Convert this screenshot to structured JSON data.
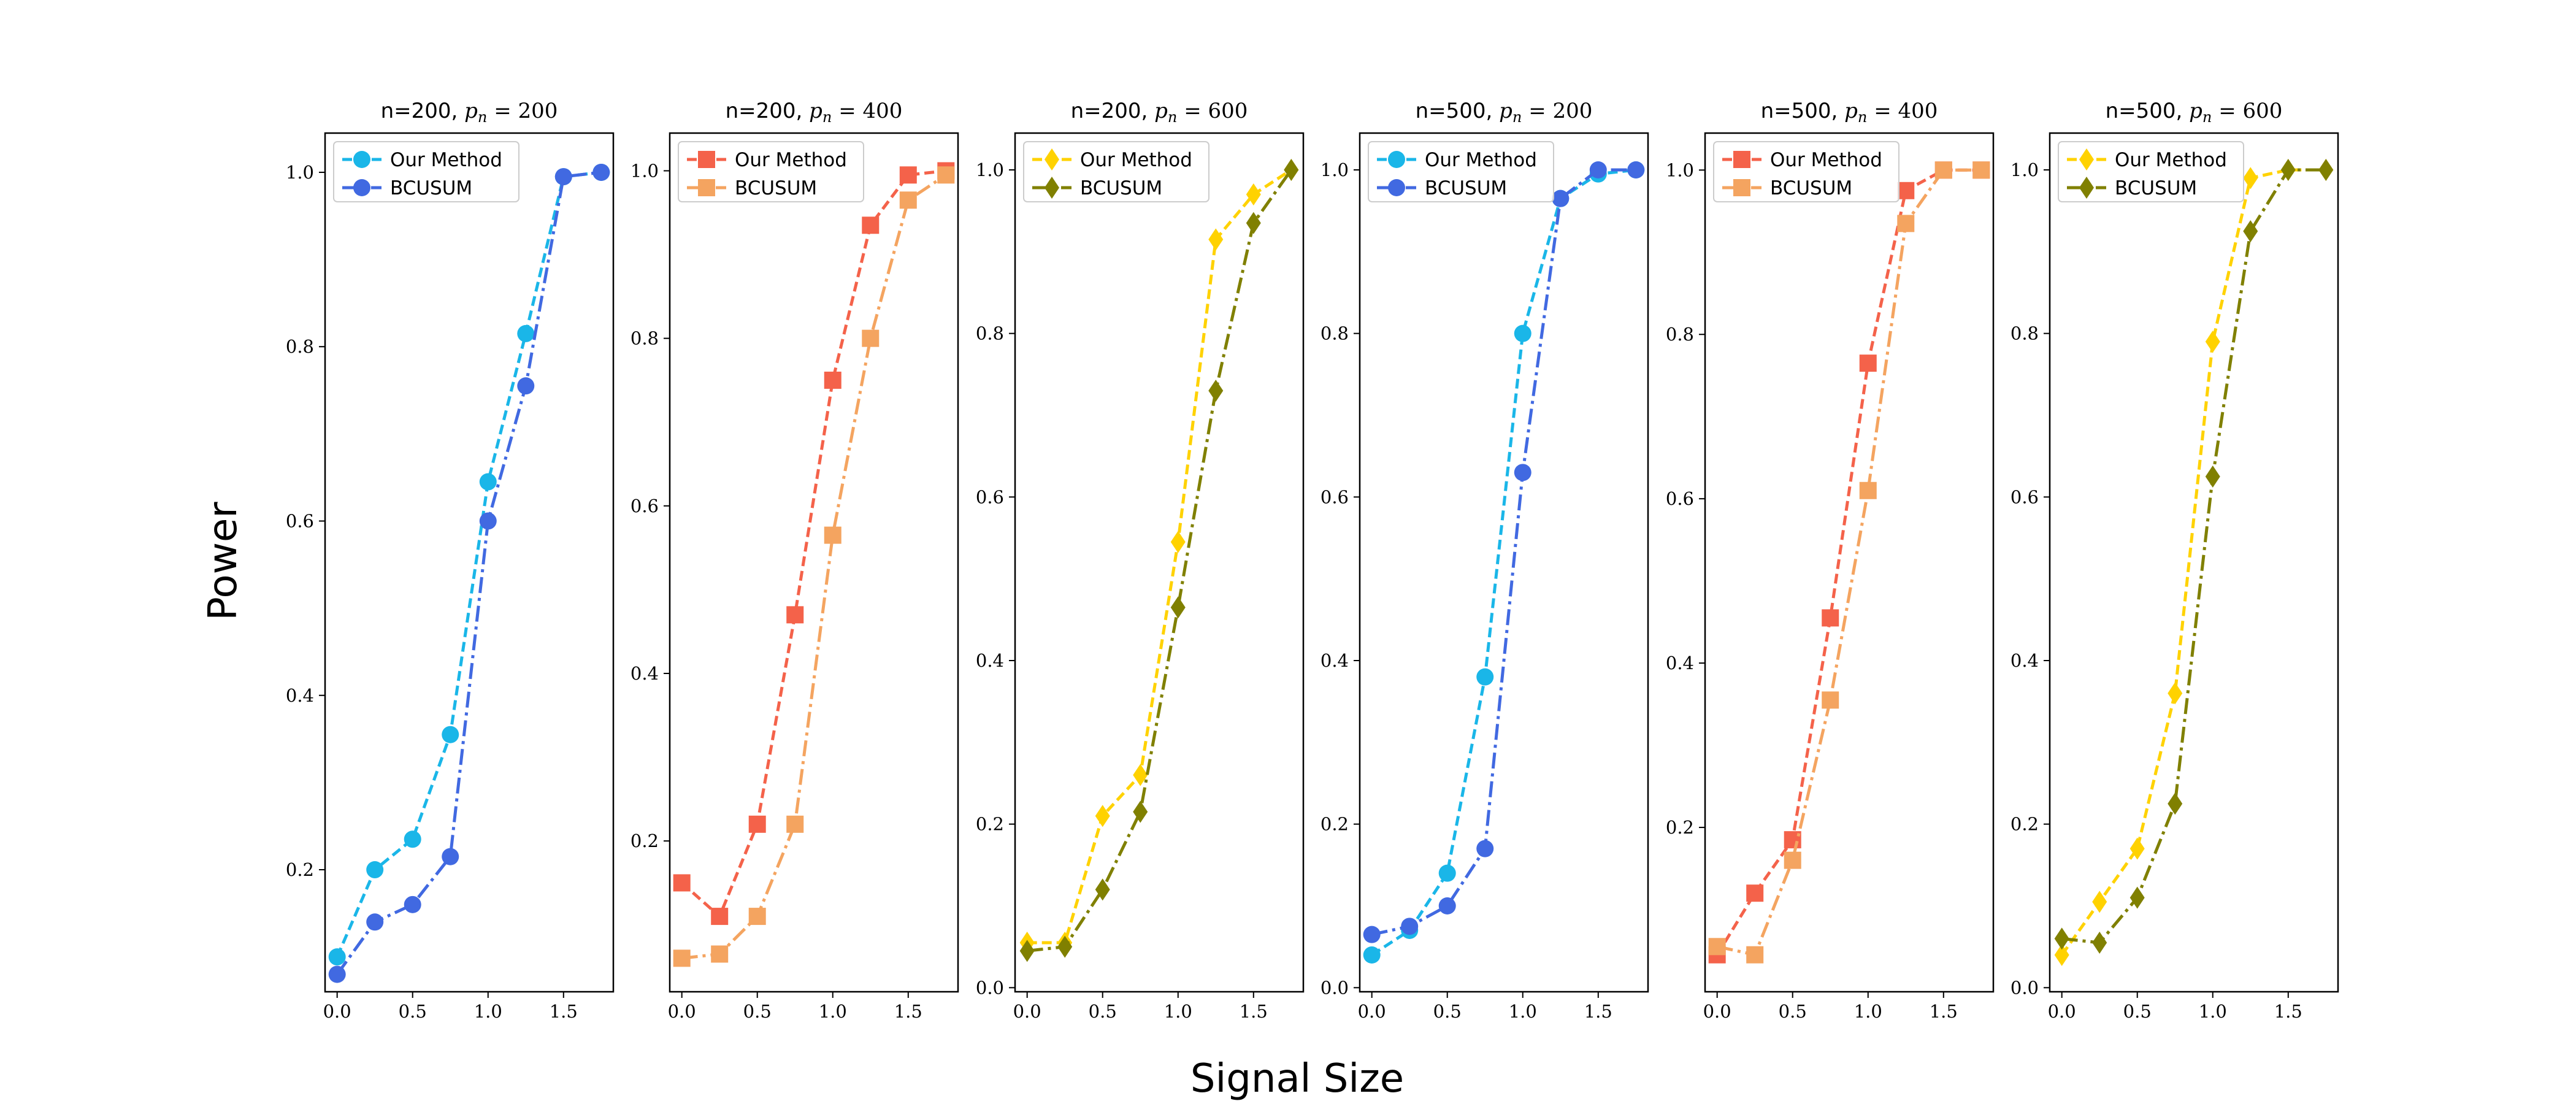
{
  "figure": {
    "ylabel": "Power",
    "xlabel": "Signal Size"
  },
  "chart_data": [
    {
      "type": "line",
      "title": "n=200, p_n = 200",
      "title_parts": [
        "n=200, ",
        "p",
        "n",
        " = 200"
      ],
      "x": [
        0.0,
        0.25,
        0.5,
        0.75,
        1.0,
        1.25,
        1.5,
        1.75
      ],
      "xlim": [
        -0.08,
        1.83
      ],
      "ylim": [
        0.06,
        1.045
      ],
      "xticks": [
        "0.0",
        "0.5",
        "1.0",
        "1.5"
      ],
      "xtick_values": [
        0.0,
        0.5,
        1.0,
        1.5
      ],
      "yticks": [
        "0.2",
        "0.4",
        "0.6",
        "0.8",
        "1.0"
      ],
      "ytick_values": [
        0.2,
        0.4,
        0.6,
        0.8,
        1.0
      ],
      "legend_position": "upper-left",
      "series": [
        {
          "name": "Our Method",
          "color": "#1AB6E8",
          "marker": "circle",
          "linestyle": "dashed",
          "values": [
            0.1,
            0.2,
            0.235,
            0.355,
            0.645,
            0.815,
            0.995,
            1.0
          ]
        },
        {
          "name": "BCUSUM",
          "color": "#4169E1",
          "marker": "circle",
          "linestyle": "dashdot",
          "values": [
            0.08,
            0.14,
            0.16,
            0.215,
            0.6,
            0.755,
            0.995,
            1.0
          ]
        }
      ]
    },
    {
      "type": "line",
      "title": "n=200, p_n = 400",
      "title_parts": [
        "n=200, ",
        "p",
        "n",
        " = 400"
      ],
      "x": [
        0.0,
        0.25,
        0.5,
        0.75,
        1.0,
        1.25,
        1.5,
        1.75
      ],
      "xlim": [
        -0.08,
        1.83
      ],
      "ylim": [
        0.02,
        1.045
      ],
      "xticks": [
        "0.0",
        "0.5",
        "1.0",
        "1.5"
      ],
      "xtick_values": [
        0.0,
        0.5,
        1.0,
        1.5
      ],
      "yticks": [
        "0.2",
        "0.4",
        "0.6",
        "0.8",
        "1.0"
      ],
      "ytick_values": [
        0.2,
        0.4,
        0.6,
        0.8,
        1.0
      ],
      "legend_position": "upper-left",
      "series": [
        {
          "name": "Our Method",
          "color": "#F4624A",
          "marker": "square",
          "linestyle": "dashed",
          "values": [
            0.15,
            0.11,
            0.22,
            0.47,
            0.75,
            0.935,
            0.995,
            1.0
          ]
        },
        {
          "name": "BCUSUM",
          "color": "#F4A460",
          "marker": "square",
          "linestyle": "dashdot",
          "values": [
            0.06,
            0.065,
            0.11,
            0.22,
            0.565,
            0.8,
            0.965,
            0.995
          ]
        }
      ]
    },
    {
      "type": "line",
      "title": "n=200, p_n = 600",
      "title_parts": [
        "n=200, ",
        "p",
        "n",
        " = 600"
      ],
      "x": [
        0.0,
        0.25,
        0.5,
        0.75,
        1.0,
        1.25,
        1.5,
        1.75
      ],
      "xlim": [
        -0.08,
        1.83
      ],
      "ylim": [
        -0.005,
        1.045
      ],
      "xticks": [
        "0.0",
        "0.5",
        "1.0",
        "1.5"
      ],
      "xtick_values": [
        0.0,
        0.5,
        1.0,
        1.5
      ],
      "yticks": [
        "0.0",
        "0.2",
        "0.4",
        "0.6",
        "0.8",
        "1.0"
      ],
      "ytick_values": [
        0.0,
        0.2,
        0.4,
        0.6,
        0.8,
        1.0
      ],
      "legend_position": "upper-left",
      "series": [
        {
          "name": "Our Method",
          "color": "#FFD200",
          "marker": "diamond",
          "linestyle": "dashed",
          "values": [
            0.055,
            0.055,
            0.21,
            0.26,
            0.545,
            0.915,
            0.97,
            1.0
          ]
        },
        {
          "name": "BCUSUM",
          "color": "#808000",
          "marker": "diamond",
          "linestyle": "dashdot",
          "values": [
            0.045,
            0.05,
            0.12,
            0.215,
            0.465,
            0.73,
            0.935,
            1.0
          ]
        }
      ]
    },
    {
      "type": "line",
      "title": "n=500, p_n = 200",
      "title_parts": [
        "n=500, ",
        "p",
        "n",
        " = 200"
      ],
      "x": [
        0.0,
        0.25,
        0.5,
        0.75,
        1.0,
        1.25,
        1.5,
        1.75
      ],
      "xlim": [
        -0.08,
        1.83
      ],
      "ylim": [
        -0.005,
        1.045
      ],
      "xticks": [
        "0.0",
        "0.5",
        "1.0",
        "1.5"
      ],
      "xtick_values": [
        0.0,
        0.5,
        1.0,
        1.5
      ],
      "yticks": [
        "0.0",
        "0.2",
        "0.4",
        "0.6",
        "0.8",
        "1.0"
      ],
      "ytick_values": [
        0.0,
        0.2,
        0.4,
        0.6,
        0.8,
        1.0
      ],
      "legend_position": "upper-left",
      "series": [
        {
          "name": "Our Method",
          "color": "#1AB6E8",
          "marker": "circle",
          "linestyle": "dashed",
          "values": [
            0.04,
            0.07,
            0.14,
            0.38,
            0.8,
            0.965,
            0.995,
            1.0
          ]
        },
        {
          "name": "BCUSUM",
          "color": "#4169E1",
          "marker": "circle",
          "linestyle": "dashdot",
          "values": [
            0.065,
            0.075,
            0.1,
            0.17,
            0.63,
            0.965,
            1.0,
            1.0
          ]
        }
      ]
    },
    {
      "type": "line",
      "title": "n=500, p_n = 400",
      "title_parts": [
        "n=500, ",
        "p",
        "n",
        " = 400"
      ],
      "x": [
        0.0,
        0.25,
        0.5,
        0.75,
        1.0,
        1.25,
        1.5,
        1.75
      ],
      "xlim": [
        -0.08,
        1.83
      ],
      "ylim": [
        0.0,
        1.045
      ],
      "xticks": [
        "0.0",
        "0.5",
        "1.0",
        "1.5"
      ],
      "xtick_values": [
        0.0,
        0.5,
        1.0,
        1.5
      ],
      "yticks": [
        "0.2",
        "0.4",
        "0.6",
        "0.8",
        "1.0"
      ],
      "ytick_values": [
        0.2,
        0.4,
        0.6,
        0.8,
        1.0
      ],
      "legend_position": "upper-left",
      "series": [
        {
          "name": "Our Method",
          "color": "#F4624A",
          "marker": "square",
          "linestyle": "dashed",
          "values": [
            0.045,
            0.12,
            0.185,
            0.455,
            0.765,
            0.975,
            1.0,
            1.0
          ]
        },
        {
          "name": "BCUSUM",
          "color": "#F4A460",
          "marker": "square",
          "linestyle": "dashdot",
          "values": [
            0.055,
            0.045,
            0.16,
            0.355,
            0.61,
            0.935,
            1.0,
            1.0
          ]
        }
      ]
    },
    {
      "type": "line",
      "title": "n=500, p_n = 600",
      "title_parts": [
        "n=500, ",
        "p",
        "n",
        " = 600"
      ],
      "x": [
        0.0,
        0.25,
        0.5,
        0.75,
        1.0,
        1.25,
        1.5,
        1.75
      ],
      "xlim": [
        -0.08,
        1.83
      ],
      "ylim": [
        -0.005,
        1.045
      ],
      "xticks": [
        "0.0",
        "0.5",
        "1.0",
        "1.5"
      ],
      "xtick_values": [
        0.0,
        0.5,
        1.0,
        1.5
      ],
      "yticks": [
        "0.0",
        "0.2",
        "0.4",
        "0.6",
        "0.8",
        "1.0"
      ],
      "ytick_values": [
        0.0,
        0.2,
        0.4,
        0.6,
        0.8,
        1.0
      ],
      "legend_position": "upper-left",
      "series": [
        {
          "name": "Our Method",
          "color": "#FFD200",
          "marker": "diamond",
          "linestyle": "dashed",
          "values": [
            0.04,
            0.105,
            0.17,
            0.36,
            0.79,
            0.99,
            1.0,
            1.0
          ]
        },
        {
          "name": "BCUSUM",
          "color": "#808000",
          "marker": "diamond",
          "linestyle": "dashdot",
          "values": [
            0.06,
            0.055,
            0.11,
            0.225,
            0.625,
            0.925,
            1.0,
            1.0
          ]
        }
      ]
    }
  ]
}
